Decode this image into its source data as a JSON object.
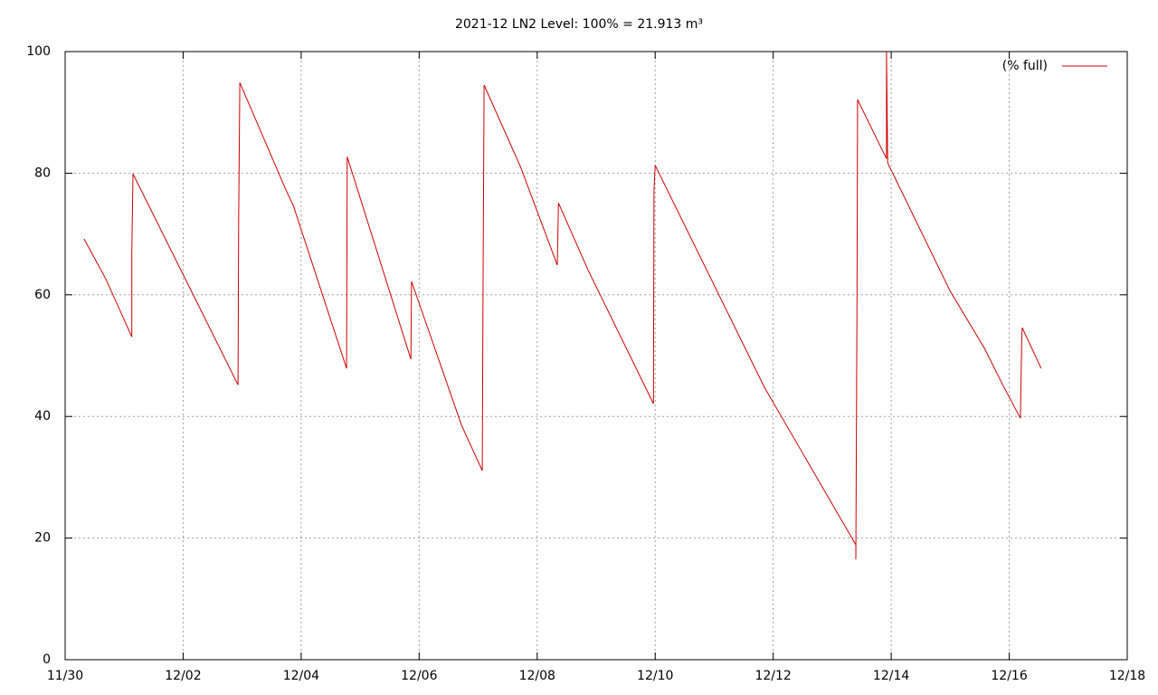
{
  "chart_data": {
    "type": "line",
    "title": "2021-12 LN2 Level: 100% = 21.913 m³",
    "x": [
      0.32,
      0.69,
      1.13,
      1.13,
      1.15,
      2.93,
      2.94,
      2.96,
      3.73,
      3.87,
      4.77,
      4.78,
      5.86,
      5.87,
      6.72,
      7.07,
      7.08,
      7.1,
      7.72,
      8.34,
      8.36,
      8.86,
      9.97,
      9.98,
      10.0,
      11.85,
      13.4,
      13.4,
      13.42,
      13.43,
      13.92,
      13.92,
      13.94,
      15.0,
      15.58,
      15.89,
      16.19,
      16.21,
      16.22,
      16.54
    ],
    "series": [
      {
        "name": "(% full)",
        "color": "#cc0000",
        "values": [
          69.2,
          62.6,
          53.1,
          66.7,
          79.9,
          45.2,
          72.3,
          94.9,
          77.5,
          74.6,
          47.9,
          82.7,
          49.4,
          62.2,
          38.5,
          31.1,
          57.1,
          94.5,
          81.0,
          64.9,
          75.1,
          64.1,
          42.1,
          77.2,
          81.3,
          44.8,
          18.9,
          16.5,
          59.1,
          92.1,
          82.4,
          100,
          81.7,
          60.6,
          51.2,
          45.2,
          39.7,
          52.2,
          54.6,
          47.9
        ]
      }
    ],
    "xlim": [
      0,
      18
    ],
    "xticks": [
      {
        "value": 0,
        "label": "11/30"
      },
      {
        "value": 2,
        "label": "12/02"
      },
      {
        "value": 4,
        "label": "12/04"
      },
      {
        "value": 6,
        "label": "12/06"
      },
      {
        "value": 8,
        "label": "12/08"
      },
      {
        "value": 10,
        "label": "12/10"
      },
      {
        "value": 12,
        "label": "12/12"
      },
      {
        "value": 14,
        "label": "12/14"
      },
      {
        "value": 16,
        "label": "12/16"
      },
      {
        "value": 18,
        "label": "12/18"
      }
    ],
    "ylim": [
      0,
      100
    ],
    "yticks": [
      0,
      20,
      40,
      60,
      80,
      100
    ],
    "grid": true,
    "legend": "top-right"
  }
}
